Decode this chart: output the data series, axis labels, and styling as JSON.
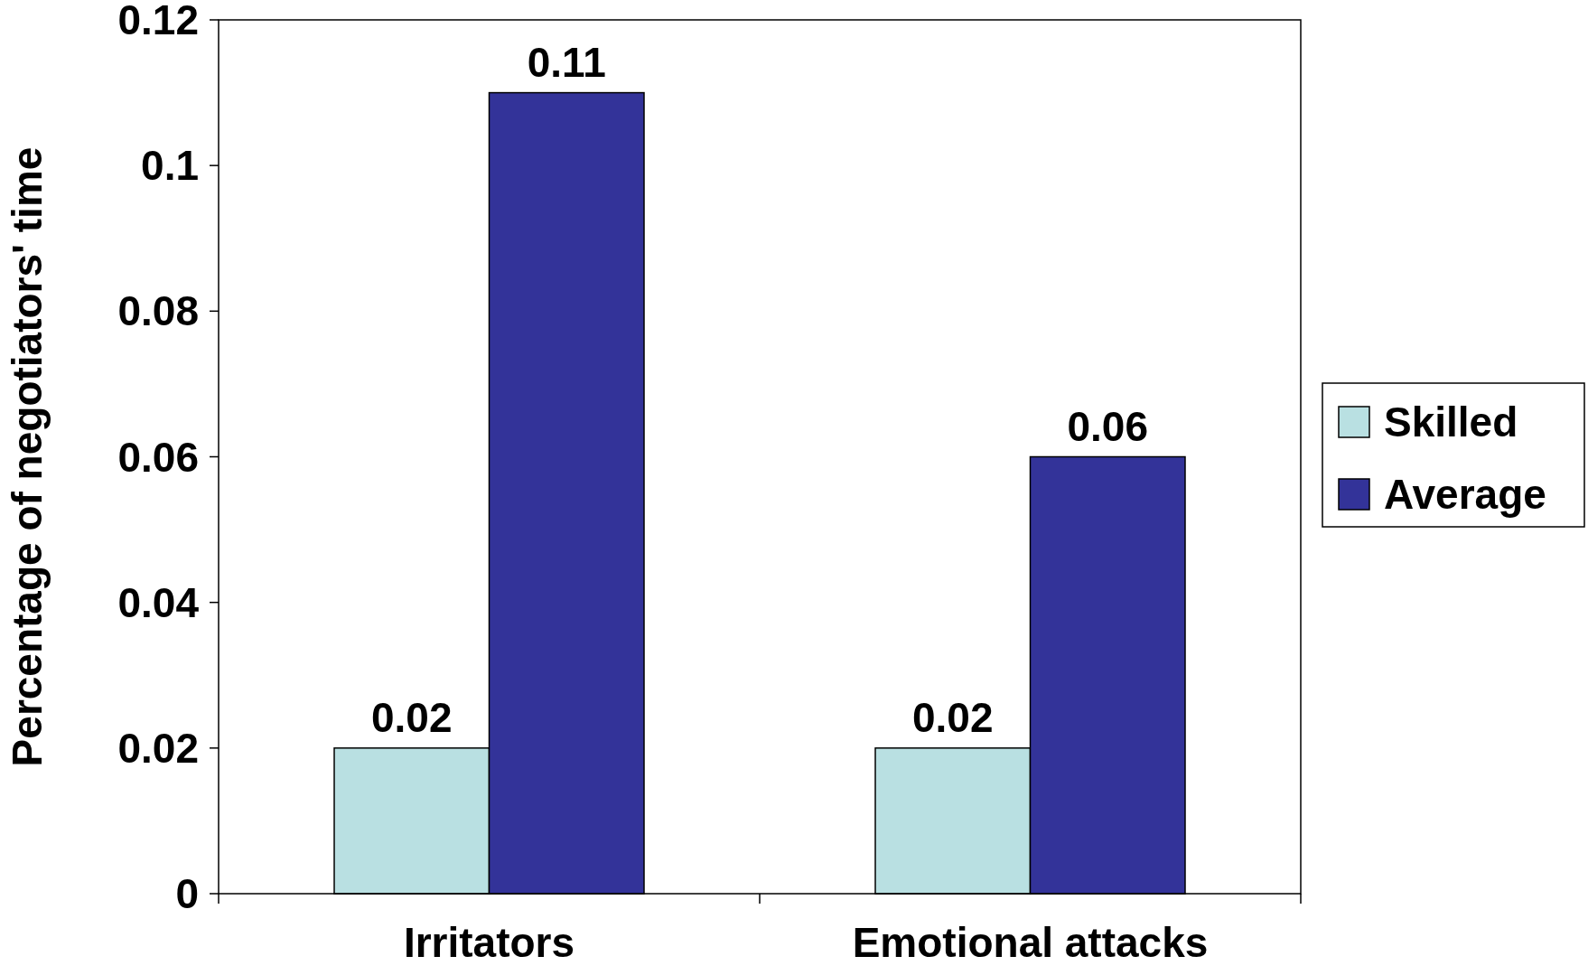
{
  "chart_data": {
    "type": "bar",
    "ylabel": "Percentage of negotiators' time",
    "categories": [
      "Irritators",
      "Emotional attacks"
    ],
    "series": [
      {
        "name": "Skilled",
        "color": "#b9e0e2",
        "values": [
          0.02,
          0.02
        ]
      },
      {
        "name": "Average",
        "color": "#333399",
        "values": [
          0.11,
          0.06
        ]
      }
    ],
    "ylim": [
      0,
      0.12
    ],
    "yticks": [
      0,
      0.02,
      0.04,
      0.06,
      0.08,
      0.1,
      0.12
    ],
    "data_labels": true,
    "legend": "right",
    "grid": false
  }
}
